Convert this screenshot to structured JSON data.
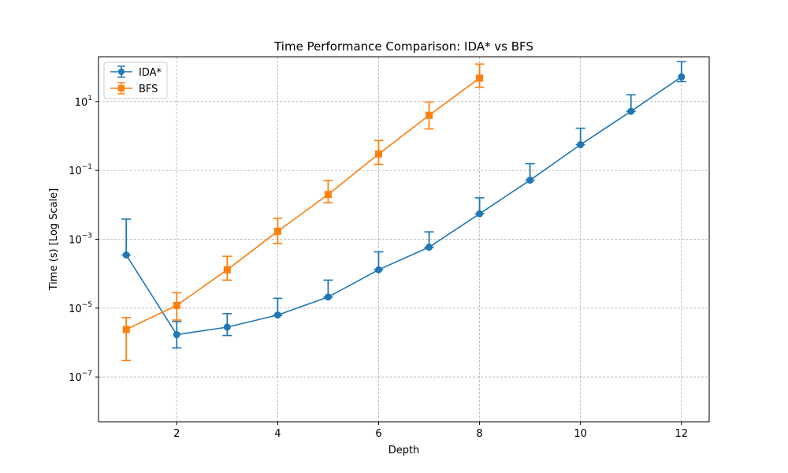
{
  "chart_data": {
    "type": "line",
    "title": "Time Performance Comparison: IDA* vs BFS",
    "xlabel": "Depth",
    "ylabel": "Time (s) [Log Scale]",
    "yscale": "log",
    "xlim": [
      0.45,
      12.55
    ],
    "ylim": [
      5e-09,
      200
    ],
    "x_ticks": [
      2,
      4,
      6,
      8,
      10,
      12
    ],
    "x_tick_labels": [
      "2",
      "4",
      "6",
      "8",
      "10",
      "12"
    ],
    "y_ticks": [
      1e-07,
      1e-05,
      0.001,
      0.1,
      10
    ],
    "y_tick_labels": [
      {
        "base": "10",
        "exp": "−7"
      },
      {
        "base": "10",
        "exp": "−5"
      },
      {
        "base": "10",
        "exp": "−3"
      },
      {
        "base": "10",
        "exp": "−1"
      },
      {
        "base": "10",
        "exp": "1"
      }
    ],
    "grid": true,
    "legend_position": "top-left",
    "series": [
      {
        "name": "IDA*",
        "color": "#1f77b4",
        "marker": "circle",
        "x": [
          1,
          2,
          3,
          4,
          5,
          6,
          7,
          8,
          9,
          10,
          11,
          12
        ],
        "y": [
          0.00035,
          1.7e-06,
          2.8e-06,
          6.3e-06,
          2.1e-05,
          0.00013,
          0.00059,
          0.0055,
          0.052,
          0.56,
          5.2,
          52
        ],
        "err_low": [
          1e-12,
          1e-06,
          1.2e-06,
          1.5e-07,
          1.6e-08,
          1e-12,
          7e-06,
          1e-12,
          1e-12,
          1e-12,
          1e-12,
          14
        ],
        "err_high": [
          0.0035,
          2.4e-06,
          4.1e-06,
          1.3e-05,
          4.4e-05,
          0.0003,
          0.00105,
          0.0105,
          0.105,
          1.12,
          10.5,
          92
        ]
      },
      {
        "name": "BFS",
        "color": "#ff7f0e",
        "marker": "square",
        "x": [
          1,
          2,
          3,
          4,
          5,
          6,
          7,
          8
        ],
        "y": [
          2.4e-06,
          1.2e-05,
          0.00013,
          0.0017,
          0.02,
          0.3,
          4,
          48
        ],
        "err_low": [
          2.1e-06,
          7.5e-06,
          6.5e-05,
          0.00095,
          0.0085,
          0.15,
          2.4,
          22
        ],
        "err_high": [
          2.9e-06,
          1.6e-05,
          0.00019,
          0.0024,
          0.031,
          0.44,
          5.7,
          75
        ]
      }
    ]
  }
}
